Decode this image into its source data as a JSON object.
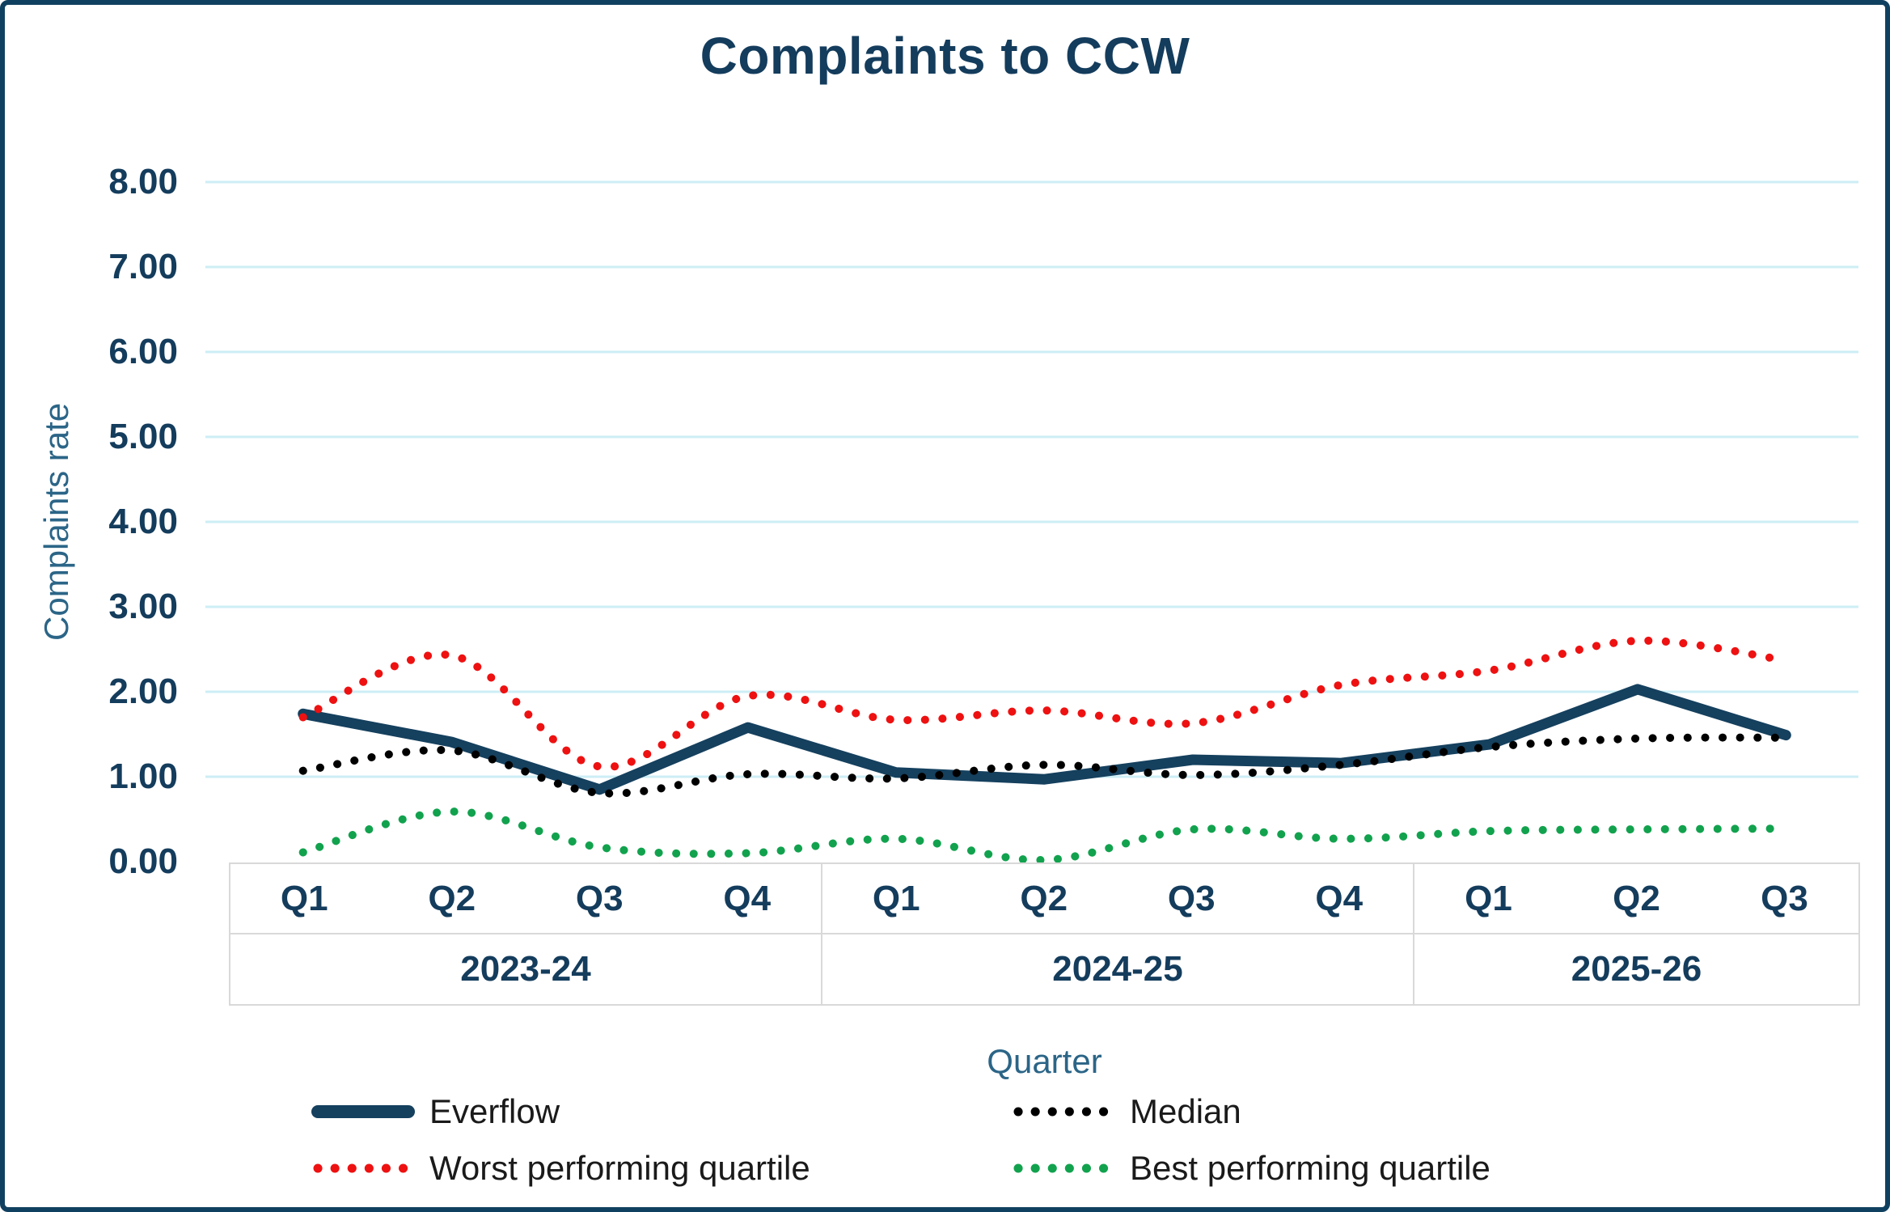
{
  "title": "Complaints to CCW",
  "y_axis": {
    "label": "Complaints rate",
    "ticks": [
      "8.00",
      "7.00",
      "6.00",
      "5.00",
      "4.00",
      "3.00",
      "2.00",
      "1.00",
      "0.00"
    ]
  },
  "x_axis": {
    "label": "Quarter",
    "years": [
      {
        "label": "2023-24",
        "quarters": [
          "Q1",
          "Q2",
          "Q3",
          "Q4"
        ]
      },
      {
        "label": "2024-25",
        "quarters": [
          "Q1",
          "Q2",
          "Q3",
          "Q4"
        ]
      },
      {
        "label": "2025-26",
        "quarters": [
          "Q1",
          "Q2",
          "Q3"
        ]
      }
    ]
  },
  "colors": {
    "card_border": "#10405f",
    "text_navy": "#143c5c",
    "axis_title_blue": "#2b6587",
    "grid_line": "#cdeef5",
    "band_border": "#d9d9d9",
    "legend_text": "#1a1a1a"
  },
  "chart_data": {
    "type": "line",
    "title": "Complaints to CCW",
    "xlabel": "Quarter",
    "ylabel": "Complaints rate",
    "ylim": [
      0,
      8
    ],
    "y_tick_step": 1,
    "grid": true,
    "legend_position": "bottom",
    "categories": [
      "Q1",
      "Q2",
      "Q3",
      "Q4",
      "Q1",
      "Q2",
      "Q3",
      "Q4",
      "Q1",
      "Q2",
      "Q3"
    ],
    "category_groups": [
      {
        "label": "2023-24",
        "count": 4
      },
      {
        "label": "2024-25",
        "count": 4
      },
      {
        "label": "2025-26",
        "count": 3
      }
    ],
    "series": [
      {
        "name": "Everflow",
        "style": "solid",
        "color": "#15405e",
        "values": [
          1.74,
          1.41,
          0.85,
          1.58,
          1.05,
          0.97,
          1.2,
          1.16,
          1.38,
          2.03,
          1.49
        ]
      },
      {
        "name": "Median",
        "style": "dotted",
        "color": "#000000",
        "values": [
          1.07,
          1.31,
          0.81,
          1.03,
          0.98,
          1.14,
          1.02,
          1.14,
          1.35,
          1.45,
          1.46
        ]
      },
      {
        "name": "Worst performing quartile",
        "style": "dotted",
        "color": "#ee1111",
        "values": [
          1.7,
          2.43,
          1.12,
          1.95,
          1.67,
          1.78,
          1.63,
          2.08,
          2.25,
          2.6,
          2.37
        ]
      },
      {
        "name": "Best performing quartile",
        "style": "dotted",
        "color": "#12a24e",
        "values": [
          0.11,
          0.59,
          0.17,
          0.1,
          0.27,
          0.02,
          0.38,
          0.27,
          0.36,
          0.38,
          0.39
        ]
      }
    ]
  }
}
